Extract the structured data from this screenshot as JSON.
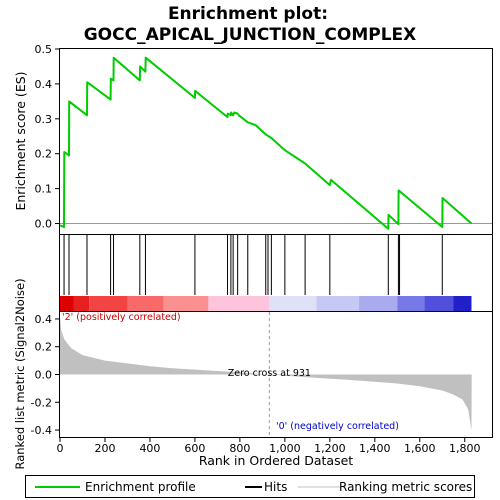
{
  "chart_data": {
    "type": "line",
    "title_line1": "Enrichment plot:",
    "title_line2": "GOCC_APICAL_JUNCTION_COMPLEX",
    "es_panel": {
      "ylabel": "Enrichment score (ES)",
      "ylim": [
        -0.03,
        0.5
      ],
      "yticks": [
        "0.0",
        "0.1",
        "0.2",
        "0.3",
        "0.4",
        "0.5"
      ],
      "ytick_values": [
        0.0,
        0.1,
        0.2,
        0.3,
        0.4,
        0.5
      ],
      "series_name": "Enrichment profile",
      "color": "#00cc00",
      "x": [
        0,
        18,
        19,
        40,
        41,
        120,
        121,
        225,
        226,
        238,
        239,
        355,
        356,
        380,
        381,
        600,
        601,
        745,
        746,
        760,
        761,
        770,
        775,
        790,
        795,
        835,
        870,
        915,
        940,
        1000,
        1090,
        1200,
        1205,
        1460,
        1461,
        1505,
        1506,
        1700,
        1701,
        1830
      ],
      "y": [
        -0.005,
        -0.01,
        0.205,
        0.195,
        0.35,
        0.31,
        0.405,
        0.355,
        0.415,
        0.41,
        0.475,
        0.41,
        0.45,
        0.435,
        0.475,
        0.36,
        0.38,
        0.305,
        0.315,
        0.31,
        0.318,
        0.31,
        0.318,
        0.315,
        0.31,
        0.29,
        0.282,
        0.255,
        0.245,
        0.21,
        0.172,
        0.11,
        0.125,
        -0.015,
        0.025,
        -0.002,
        0.095,
        -0.01,
        0.073,
        0.0
      ]
    },
    "hits": [
      18,
      40,
      120,
      225,
      238,
      355,
      380,
      600,
      745,
      760,
      770,
      790,
      835,
      915,
      925,
      940,
      1000,
      1090,
      1200,
      1460,
      1505,
      1510,
      1700
    ],
    "bar_colors": [
      "#dd0000",
      "#e92020",
      "#f34444",
      "#f86a6a",
      "#fb9090",
      "#fdc4dc",
      "#e0e0f6",
      "#c8c8f4",
      "#aaaaef",
      "#7878e6",
      "#5050dd",
      "#2020c8"
    ],
    "bar_segments_rank": [
      [
        0,
        60,
        0
      ],
      [
        60,
        130,
        1
      ],
      [
        130,
        300,
        2
      ],
      [
        300,
        460,
        3
      ],
      [
        460,
        660,
        4
      ],
      [
        660,
        931,
        5
      ],
      [
        931,
        1140,
        6
      ],
      [
        1140,
        1330,
        7
      ],
      [
        1330,
        1500,
        8
      ],
      [
        1500,
        1620,
        9
      ],
      [
        1620,
        1750,
        10
      ],
      [
        1750,
        1830,
        11
      ]
    ],
    "metric_panel": {
      "ylabel": "Ranked list metric (Signal2Noise)",
      "ylim": [
        -0.45,
        0.45
      ],
      "yticks": [
        "-0.4",
        "-0.2",
        "0.0",
        "0.2",
        "0.4"
      ],
      "ytick_values": [
        -0.4,
        -0.2,
        0.0,
        0.2,
        0.4
      ],
      "profile_x": [
        0,
        5,
        20,
        50,
        100,
        200,
        300,
        400,
        500,
        600,
        700,
        800,
        931,
        1100,
        1300,
        1500,
        1600,
        1700,
        1750,
        1790,
        1815,
        1830,
        1831
      ],
      "profile_y": [
        0.42,
        0.32,
        0.25,
        0.19,
        0.14,
        0.1,
        0.08,
        0.06,
        0.045,
        0.035,
        0.025,
        0.015,
        0.0,
        -0.02,
        -0.04,
        -0.065,
        -0.085,
        -0.115,
        -0.145,
        -0.18,
        -0.25,
        -0.4,
        0.0
      ],
      "fill_color": "#c0c0c0",
      "pos_label": "'2' (positively correlated)",
      "neg_label": "'0' (negatively correlated)",
      "zero_cross_label": "Zero cross at 931",
      "zero_cross": 931
    },
    "xlabel": "Rank in Ordered Dataset",
    "xlim": [
      0,
      1830
    ],
    "xticks": [
      "0",
      "200",
      "400",
      "600",
      "800",
      "1,000",
      "1,200",
      "1,400",
      "1,600",
      "1,800"
    ],
    "xtick_values": [
      0,
      200,
      400,
      600,
      800,
      1000,
      1200,
      1400,
      1600,
      1800
    ],
    "legend": [
      "Enrichment profile",
      "Hits",
      "Ranking metric scores"
    ],
    "legend_placement": "bottom"
  }
}
